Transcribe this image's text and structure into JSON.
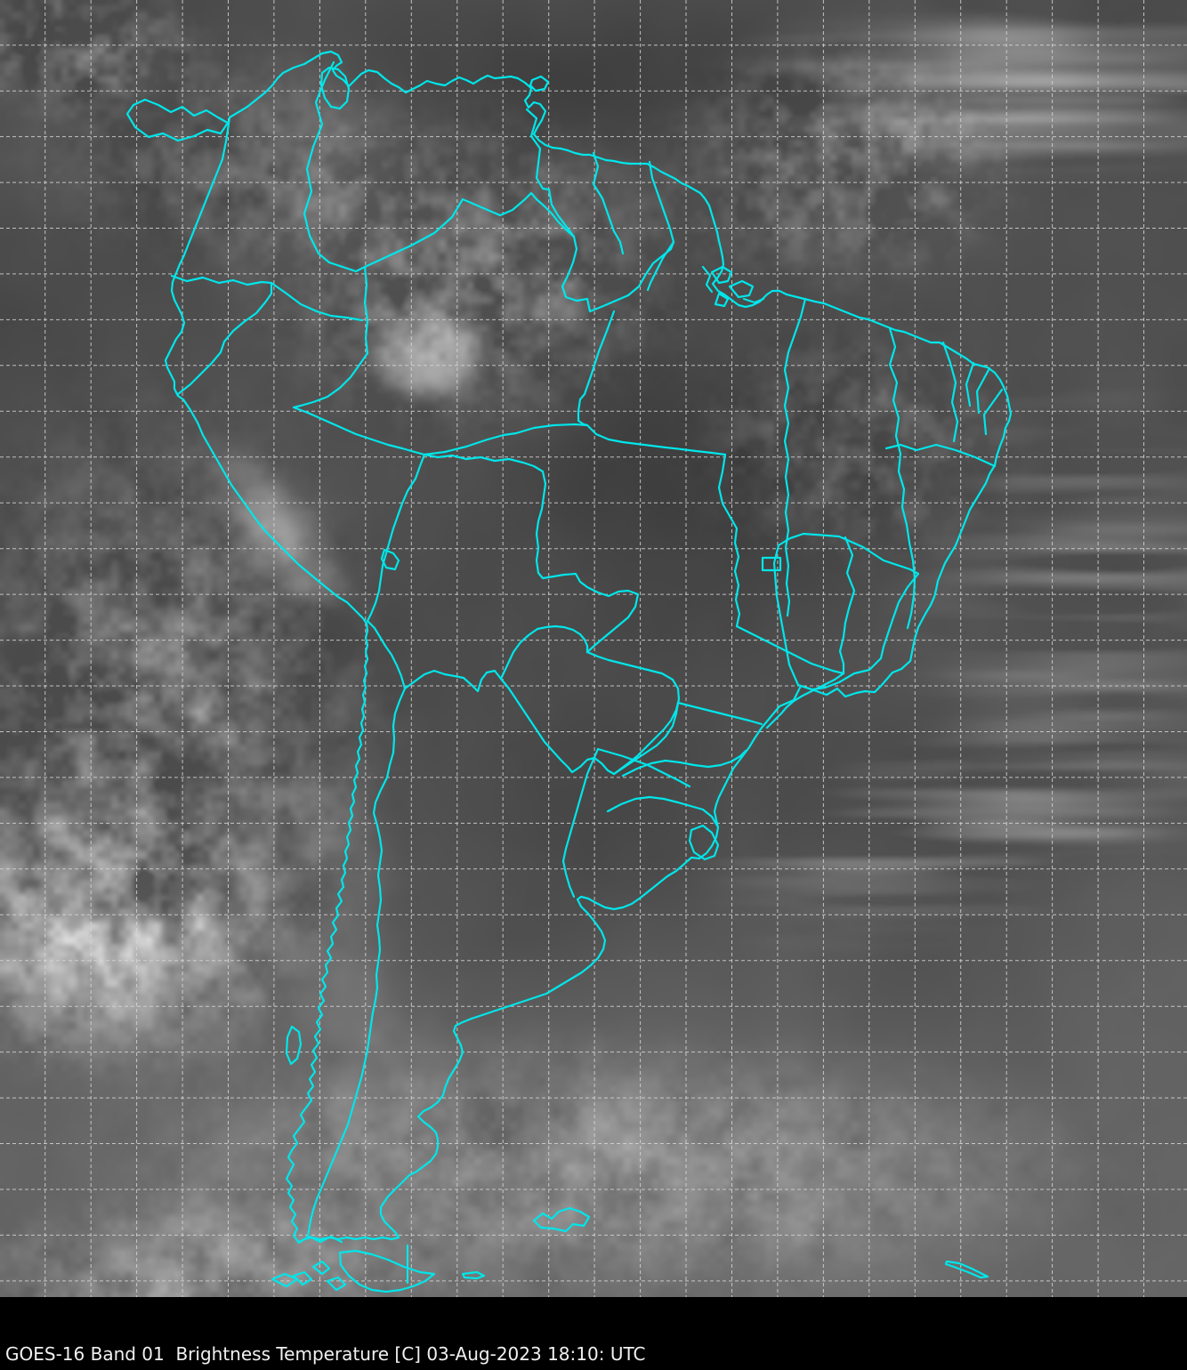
{
  "caption": {
    "text": "GOES-16 Band 01  Brightness Temperature [C] 03-Aug-2023 18:10: UTC"
  },
  "satellite": {
    "mission": "GOES-16",
    "band": "Band 01",
    "product": "Brightness Temperature",
    "units": "[C]",
    "date": "03-Aug-2023",
    "time": "18:10",
    "timezone": "UTC"
  },
  "map": {
    "region_shown": "South America",
    "overlay_color": "#00E6EA",
    "grid_color": "#D6D6D6",
    "caption_text_color": "#F0F0F0",
    "caption_background": "#000000",
    "imagery_base_gray": "#4E4E4E",
    "cloud_bright": "#F0F0F0",
    "ocean_dark": "#3C3C3C"
  }
}
